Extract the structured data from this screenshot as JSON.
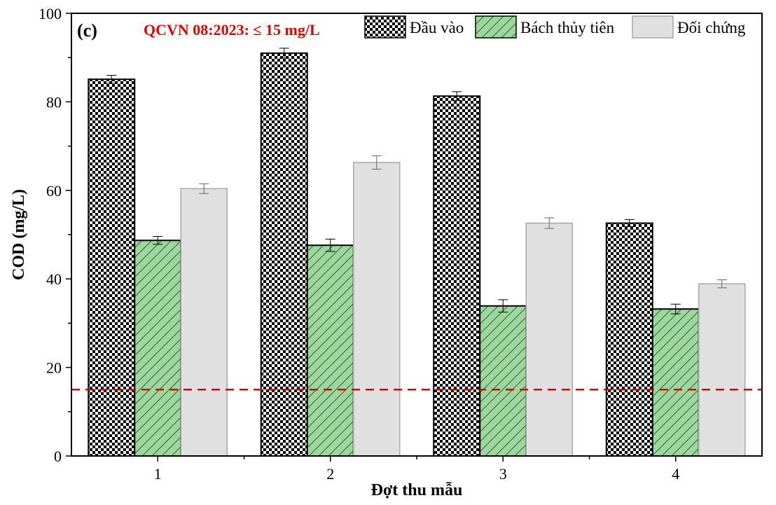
{
  "chart_data": {
    "type": "bar",
    "panel_label": "(c)",
    "annotation": "QCVN 08:2023: ≤ 15 mg/L",
    "threshold": 15,
    "threshold_color": "#e00000",
    "xlabel": "Đợt thu mẫu",
    "ylabel": "COD (mg/L)",
    "ylim": [
      0,
      100
    ],
    "yticks": [
      0,
      20,
      40,
      60,
      80,
      100
    ],
    "categories": [
      "1",
      "2",
      "3",
      "4"
    ],
    "legend_position": "top-right",
    "series": [
      {
        "name": "Đầu vào",
        "pattern": "checker",
        "values": [
          85.1,
          91.0,
          81.3,
          52.6
        ],
        "errors": [
          0.9,
          1.1,
          1.0,
          0.8
        ]
      },
      {
        "name": "Bách thủy tiên",
        "pattern": "hatch",
        "color": "#9fd59f",
        "values": [
          48.7,
          47.6,
          33.9,
          33.2
        ],
        "errors": [
          0.9,
          1.4,
          1.4,
          1.1
        ]
      },
      {
        "name": "Đối chứng",
        "pattern": "solid",
        "color": "#e0e0e0",
        "values": [
          60.4,
          66.3,
          52.6,
          38.9
        ],
        "errors": [
          1.1,
          1.5,
          1.2,
          0.9
        ]
      }
    ]
  }
}
